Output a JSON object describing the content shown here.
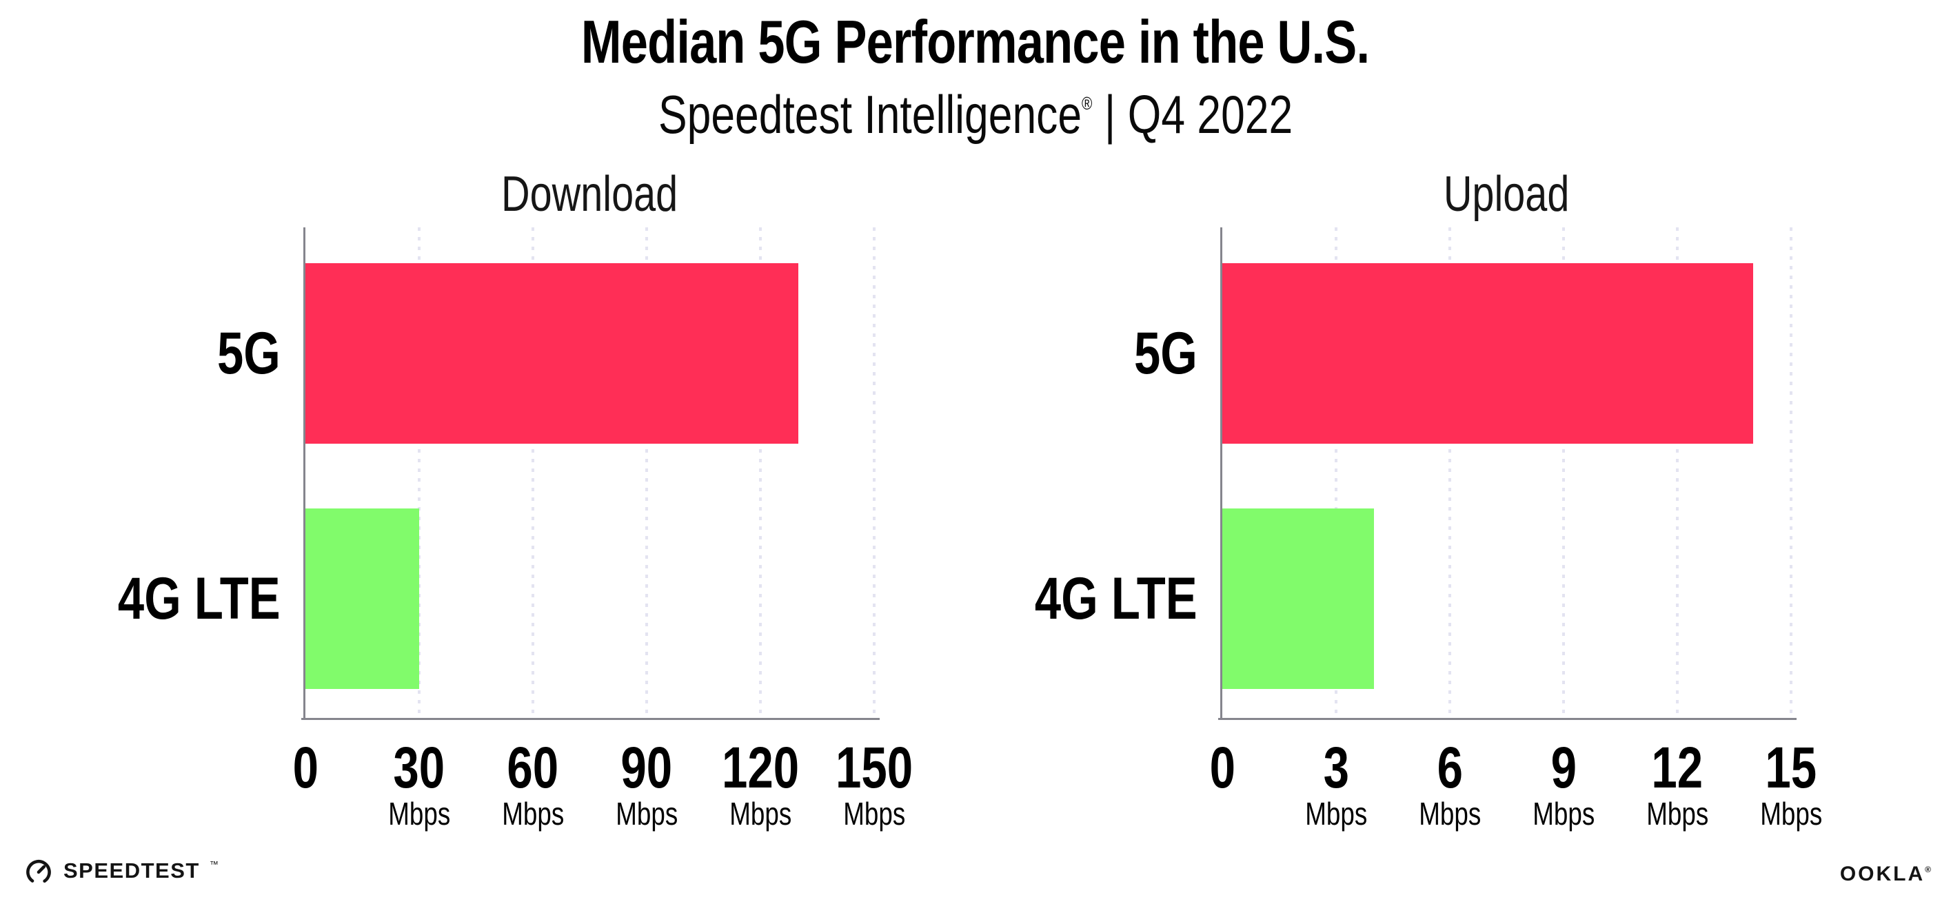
{
  "title": "Median 5G Performance in the U.S.",
  "subtitle": {
    "brand": "Speedtest Intelligence",
    "registered": "®",
    "divider": "|",
    "quarter": "Q4 2022"
  },
  "footer": {
    "speedtest_label": "SPEEDTEST",
    "speedtest_mark": "™",
    "speedtest_icon": "speedtest-gauge-icon",
    "ookla_label": "OOKLA",
    "ookla_mark": "®"
  },
  "colors": {
    "bar_5g": "#FF2E56",
    "bar_4g_lte": "#81FB6B",
    "axis": "#85858D",
    "gridline": "#E3E3F1",
    "text": "#000000"
  },
  "chart_data": [
    {
      "type": "bar",
      "orientation": "horizontal",
      "title": "Download",
      "categories": [
        "5G",
        "4G LTE"
      ],
      "values": [
        130,
        30
      ],
      "unit": "Mbps",
      "xlim": [
        0,
        150
      ],
      "xticks": [
        0,
        30,
        60,
        90,
        120,
        150
      ],
      "bar_colors": [
        "#FF2E56",
        "#81FB6B"
      ],
      "grid": "dotted-vertical",
      "legend": "none"
    },
    {
      "type": "bar",
      "orientation": "horizontal",
      "title": "Upload",
      "categories": [
        "5G",
        "4G LTE"
      ],
      "values": [
        14,
        4
      ],
      "unit": "Mbps",
      "xlim": [
        0,
        15
      ],
      "xticks": [
        0,
        3,
        6,
        9,
        12,
        15
      ],
      "bar_colors": [
        "#FF2E56",
        "#81FB6B"
      ],
      "grid": "dotted-vertical",
      "legend": "none"
    }
  ]
}
